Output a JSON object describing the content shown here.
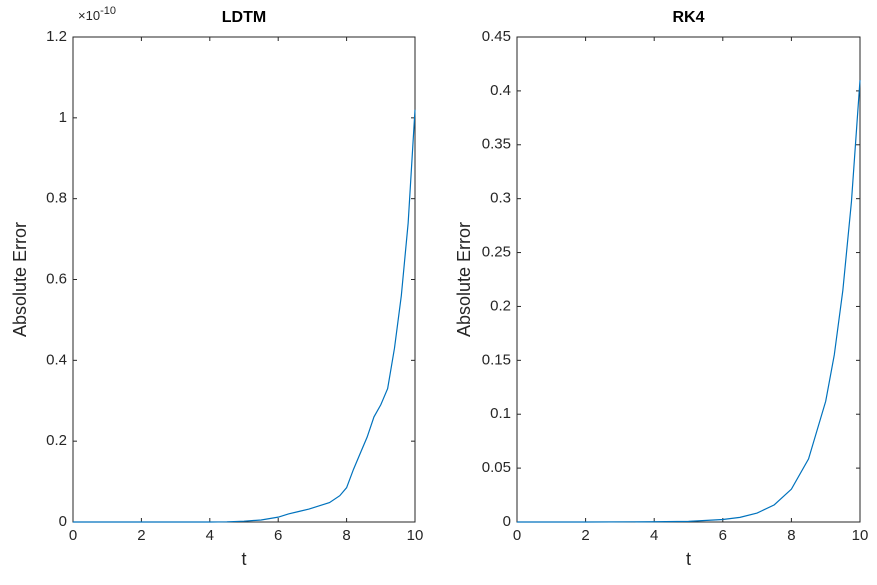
{
  "chart_data": [
    {
      "type": "line",
      "title": "LDTM",
      "xlabel": "t",
      "ylabel": "Absolute Error",
      "y_multiplier": {
        "base": "×10",
        "exponent": "-10"
      },
      "x": [
        0,
        1,
        2,
        3,
        4,
        4.5,
        5,
        5.5,
        6,
        6.3,
        6.6,
        6.9,
        7.2,
        7.5,
        7.8,
        8,
        8.2,
        8.4,
        8.6,
        8.8,
        9,
        9.2,
        9.4,
        9.6,
        9.8,
        10
      ],
      "series": [
        {
          "name": "LDTM",
          "color": "#0072bd",
          "values": [
            0,
            0,
            0,
            0,
            0,
            0.0005,
            0.002,
            0.005,
            0.012,
            0.02,
            0.026,
            0.032,
            0.04,
            0.048,
            0.065,
            0.085,
            0.13,
            0.17,
            0.21,
            0.26,
            0.29,
            0.33,
            0.43,
            0.56,
            0.74,
            1.02
          ]
        }
      ],
      "xlim": [
        0,
        10
      ],
      "xticks": [
        0,
        2,
        4,
        6,
        8,
        10
      ],
      "ylim": [
        0,
        1.2
      ],
      "yticks": [
        0,
        0.2,
        0.4,
        0.6,
        0.8,
        1,
        1.2
      ]
    },
    {
      "type": "line",
      "title": "RK4",
      "xlabel": "t",
      "ylabel": "Absolute Error",
      "x": [
        0,
        2,
        4,
        5,
        6,
        6.5,
        7,
        7.5,
        8,
        8.5,
        9,
        9.25,
        9.5,
        9.75,
        10
      ],
      "series": [
        {
          "name": "RK4",
          "color": "#0072bd",
          "values": [
            0,
            1e-05,
            0.0002,
            0.0006,
            0.0023,
            0.0043,
            0.0083,
            0.0159,
            0.0305,
            0.0585,
            0.112,
            0.155,
            0.215,
            0.297,
            0.41
          ]
        }
      ],
      "xlim": [
        0,
        10
      ],
      "xticks": [
        0,
        2,
        4,
        6,
        8,
        10
      ],
      "ylim": [
        0,
        0.45
      ],
      "yticks": [
        0,
        0.05,
        0.1,
        0.15,
        0.2,
        0.25,
        0.3,
        0.35,
        0.4,
        0.45
      ]
    }
  ]
}
